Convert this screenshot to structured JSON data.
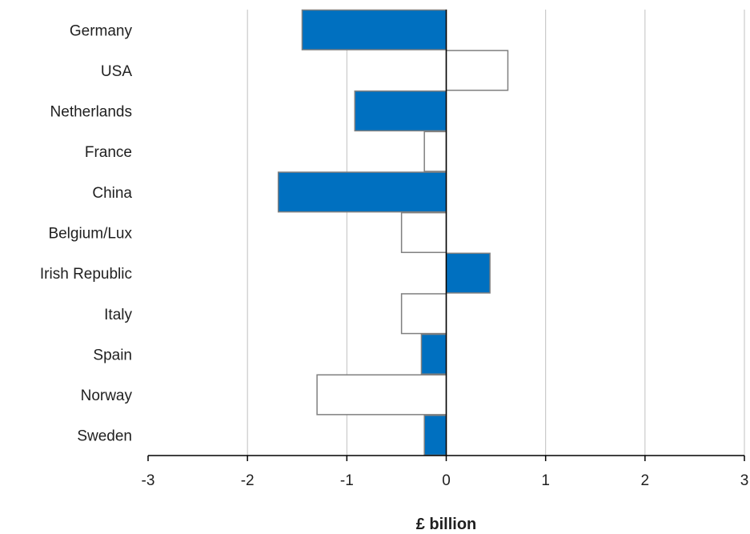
{
  "chart_data": {
    "type": "bar",
    "orientation": "horizontal",
    "categories": [
      "Germany",
      "USA",
      "Netherlands",
      "France",
      "China",
      "Belgium/Lux",
      "Irish Republic",
      "Italy",
      "Spain",
      "Norway",
      "Sweden"
    ],
    "values": [
      -1.45,
      0.62,
      -0.92,
      -0.22,
      -1.69,
      -0.45,
      0.44,
      -0.45,
      -0.25,
      -1.3,
      -0.22
    ],
    "fills": [
      "filled",
      "outline",
      "filled",
      "outline",
      "filled",
      "outline",
      "filled",
      "outline",
      "filled",
      "outline",
      "filled"
    ],
    "xlabel": "£ billion",
    "ylabel": "",
    "title": "",
    "xlim": [
      -3,
      3
    ],
    "xticks": [
      -3,
      -2,
      -1,
      0,
      1,
      2,
      3
    ],
    "xtick_labels": [
      "-3",
      "-2",
      "-1",
      "0",
      "1",
      "2",
      "3"
    ],
    "grid": "vertical",
    "legend": "none"
  },
  "colors": {
    "filled_bar": "#0070c0",
    "outline_bar_fill": "#ffffff",
    "bar_border": "#7f7f7f"
  }
}
